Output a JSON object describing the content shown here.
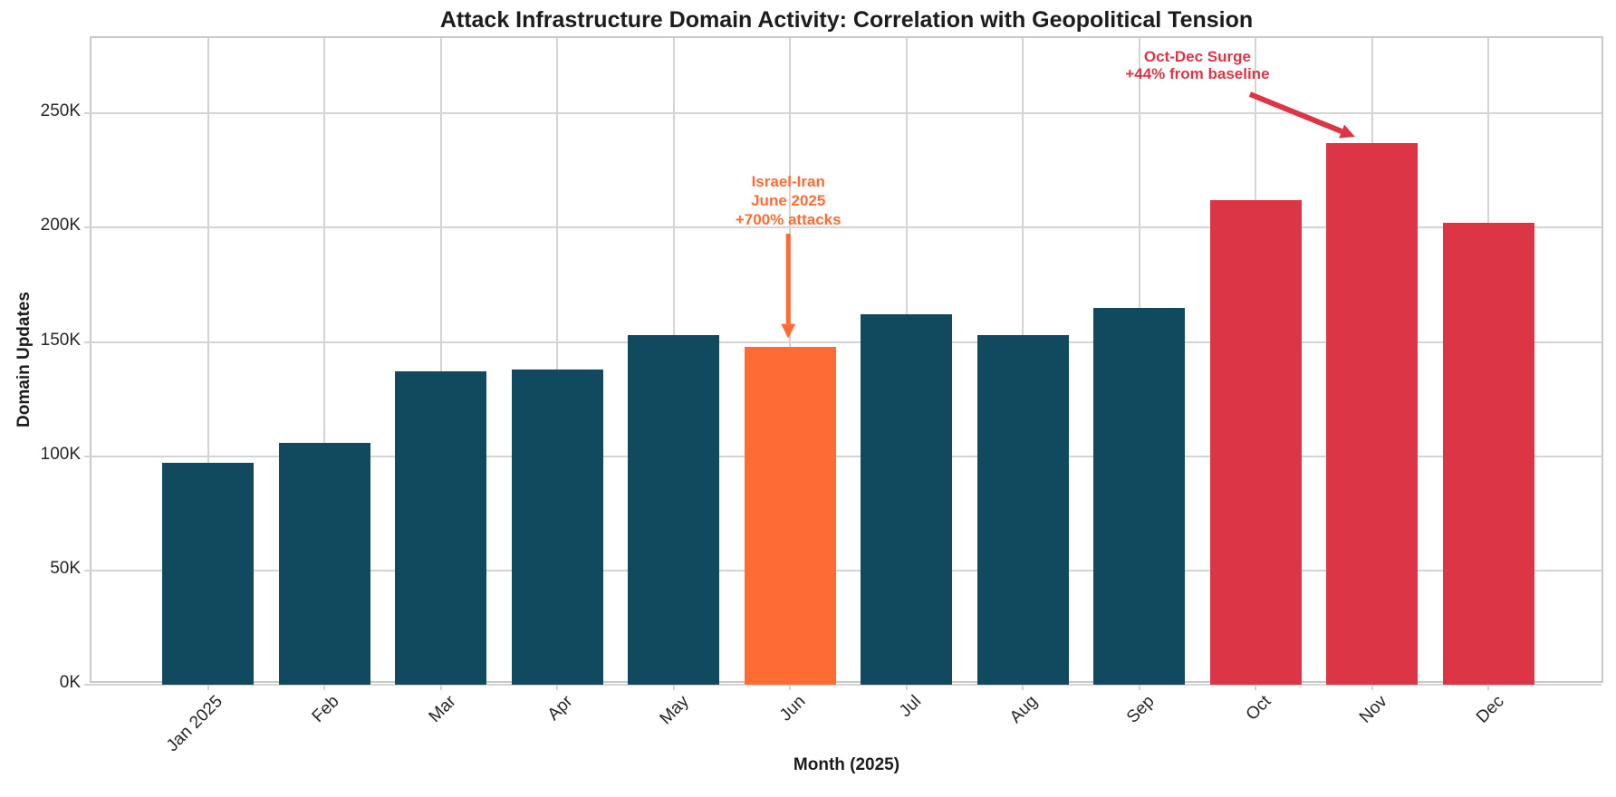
{
  "chart_data": {
    "type": "bar",
    "title": "Attack Infrastructure Domain Activity: Correlation with Geopolitical Tension",
    "xlabel": "Month (2025)",
    "ylabel": "Domain Updates",
    "categories": [
      "Jan 2025",
      "Feb",
      "Mar",
      "Apr",
      "May",
      "Jun",
      "Jul",
      "Aug",
      "Sep",
      "Oct",
      "Nov",
      "Dec"
    ],
    "values": [
      97000,
      106000,
      137000,
      138000,
      153000,
      148000,
      162000,
      153000,
      165000,
      212000,
      237000,
      202000
    ],
    "bar_groups": [
      "baseline",
      "baseline",
      "baseline",
      "baseline",
      "baseline",
      "june_event",
      "baseline",
      "baseline",
      "baseline",
      "surge",
      "surge",
      "surge"
    ],
    "colors": {
      "baseline": "#114a5f",
      "june_event": "#ff6b35",
      "surge": "#dc3545",
      "grid": "#d4d4d4",
      "frame": "#c9c9c9",
      "text": "#1c1c1c",
      "tick_text": "#262626"
    },
    "yticks": [
      0,
      50000,
      100000,
      150000,
      200000,
      250000
    ],
    "ytick_labels": [
      "0K",
      "50K",
      "100K",
      "150K",
      "200K",
      "250K"
    ],
    "ylim": [
      0,
      283000
    ],
    "grid": true,
    "legend": null,
    "annotations": [
      {
        "id": "june",
        "lines": [
          "Israel-Iran",
          "June 2025",
          "+700% attacks"
        ],
        "color": "#ff6b35",
        "target_category": "Jun"
      },
      {
        "id": "surge",
        "lines": [
          "Oct-Dec Surge",
          "+44% from baseline"
        ],
        "color": "#dc3545",
        "target_category": "Nov"
      }
    ]
  }
}
